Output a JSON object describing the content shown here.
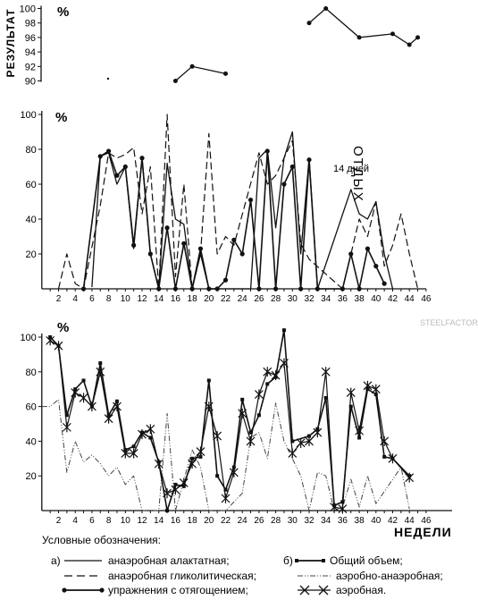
{
  "chart_data": [
    {
      "type": "line",
      "ylabel": "РЕЗУЛЬТАТ",
      "unit": "%",
      "ylim": [
        90,
        100
      ],
      "yticks": [
        90,
        92,
        94,
        96,
        98,
        100
      ],
      "series": [
        {
          "values": [
            [
              16,
              90
            ],
            [
              18,
              92
            ],
            [
              22,
              91
            ]
          ]
        },
        {
          "values": [
            [
              32,
              98
            ],
            [
              34,
              100
            ],
            [
              38,
              96
            ],
            [
              42,
              96.5
            ],
            [
              44,
              95
            ],
            [
              45,
              96
            ]
          ]
        }
      ]
    },
    {
      "type": "line",
      "unit": "%",
      "annotations": [
        "ОТДЫХ",
        "14 дней"
      ],
      "ylim": [
        0,
        100
      ],
      "yticks": [
        20,
        40,
        60,
        80,
        100
      ],
      "xlim": [
        0,
        46
      ],
      "xticks": [
        2,
        4,
        6,
        8,
        10,
        12,
        14,
        16,
        18,
        20,
        22,
        24,
        26,
        28,
        30,
        32,
        34,
        36,
        38,
        40,
        42,
        44,
        46
      ],
      "series": [
        {
          "values": [
            [
              6,
              1
            ],
            [
              7,
              76
            ],
            [
              8,
              78
            ],
            [
              9,
              60
            ],
            [
              10,
              70
            ],
            [
              11,
              23
            ],
            [
              12,
              75
            ],
            [
              13,
              20
            ],
            [
              14,
              0
            ],
            [
              15,
              72
            ],
            [
              16,
              40
            ],
            [
              17,
              37
            ],
            [
              18,
              0
            ],
            [
              19,
              20
            ],
            [
              20,
              0
            ],
            [
              25,
              0
            ],
            [
              26,
              75
            ],
            [
              27,
              80
            ],
            [
              28,
              35
            ],
            [
              29,
              75
            ],
            [
              30,
              90
            ],
            [
              31,
              20
            ],
            [
              32,
              75
            ],
            [
              33,
              0
            ],
            [
              37,
              57
            ],
            [
              38,
              43
            ],
            [
              39,
              40
            ],
            [
              40,
              50
            ],
            [
              41,
              20
            ],
            [
              42,
              0
            ]
          ]
        },
        {
          "values": [
            [
              2,
              0
            ],
            [
              3,
              20
            ],
            [
              4,
              3
            ],
            [
              5,
              0
            ],
            [
              7,
              48
            ],
            [
              8,
              78
            ],
            [
              9,
              75
            ],
            [
              10,
              77
            ],
            [
              11,
              81
            ],
            [
              12,
              43
            ],
            [
              13,
              70
            ],
            [
              14,
              0
            ],
            [
              15,
              100
            ],
            [
              16,
              7
            ],
            [
              17,
              60
            ],
            [
              18,
              0
            ],
            [
              19,
              20
            ],
            [
              20,
              89
            ],
            [
              21,
              20
            ],
            [
              22,
              30
            ],
            [
              23,
              25
            ],
            [
              26,
              78
            ],
            [
              27,
              60
            ],
            [
              28,
              65
            ],
            [
              29,
              75
            ],
            [
              30,
              85
            ],
            [
              31,
              26
            ],
            [
              32,
              17
            ],
            [
              36,
              0
            ],
            [
              37,
              20
            ],
            [
              38,
              40
            ],
            [
              39,
              30
            ],
            [
              40,
              50
            ],
            [
              41,
              13
            ],
            [
              42,
              25
            ],
            [
              43,
              43
            ],
            [
              44,
              20
            ],
            [
              45,
              0
            ]
          ]
        },
        {
          "values": [
            [
              5,
              0
            ],
            [
              7,
              76
            ],
            [
              8,
              79
            ],
            [
              9,
              65
            ],
            [
              10,
              70
            ],
            [
              11,
              25
            ],
            [
              12,
              75
            ],
            [
              13,
              20
            ],
            [
              14,
              0
            ],
            [
              15,
              35
            ],
            [
              16,
              0
            ],
            [
              17,
              26
            ],
            [
              18,
              0
            ],
            [
              19,
              23
            ],
            [
              20,
              0
            ],
            [
              21,
              0
            ],
            [
              22,
              5
            ],
            [
              23,
              28
            ],
            [
              24,
              20
            ],
            [
              25,
              51
            ],
            [
              26,
              0
            ],
            [
              27,
              79
            ],
            [
              28,
              0
            ],
            [
              29,
              60
            ],
            [
              30,
              70
            ],
            [
              31,
              0
            ],
            [
              32,
              74
            ],
            [
              33,
              0
            ],
            [
              36,
              0
            ],
            [
              37,
              20
            ],
            [
              38,
              0
            ],
            [
              39,
              23
            ],
            [
              40,
              13
            ],
            [
              41,
              3
            ]
          ]
        }
      ]
    },
    {
      "type": "line",
      "unit": "%",
      "xlabel": "НЕДЕЛИ",
      "ylim": [
        0,
        100
      ],
      "yticks": [
        20,
        40,
        60,
        80,
        100
      ],
      "xlim": [
        0,
        46
      ],
      "xticks": [
        2,
        4,
        6,
        8,
        10,
        12,
        14,
        16,
        18,
        20,
        22,
        24,
        26,
        28,
        30,
        32,
        34,
        36,
        38,
        40,
        42,
        44,
        46
      ],
      "series": [
        {
          "values": [
            [
              1,
              100
            ],
            [
              2,
              95
            ],
            [
              3,
              55
            ],
            [
              4,
              70
            ],
            [
              5,
              75
            ],
            [
              6,
              60
            ],
            [
              7,
              85
            ],
            [
              8,
              55
            ],
            [
              9,
              63
            ],
            [
              10,
              35
            ],
            [
              11,
              37
            ],
            [
              12,
              45
            ],
            [
              13,
              42
            ],
            [
              14,
              28
            ],
            [
              15,
              0
            ],
            [
              16,
              15
            ],
            [
              17,
              14
            ],
            [
              18,
              30
            ],
            [
              19,
              31
            ],
            [
              20,
              75
            ],
            [
              21,
              20
            ],
            [
              22,
              12
            ],
            [
              23,
              25
            ],
            [
              24,
              64
            ],
            [
              25,
              45
            ],
            [
              26,
              55
            ],
            [
              27,
              73
            ],
            [
              28,
              77
            ],
            [
              29,
              104
            ],
            [
              30,
              40
            ],
            [
              32,
              43
            ],
            [
              33,
              47
            ],
            [
              34,
              65
            ],
            [
              35,
              3
            ],
            [
              36,
              5
            ],
            [
              37,
              60
            ],
            [
              38,
              42
            ],
            [
              39,
              70
            ],
            [
              40,
              67
            ],
            [
              41,
              31
            ],
            [
              42,
              30
            ],
            [
              44,
              20
            ]
          ]
        },
        {
          "values": [
            [
              1,
              98
            ],
            [
              2,
              95
            ],
            [
              3,
              48
            ],
            [
              4,
              68
            ],
            [
              5,
              65
            ],
            [
              6,
              60
            ],
            [
              7,
              80
            ],
            [
              8,
              53
            ],
            [
              9,
              60
            ],
            [
              10,
              33
            ],
            [
              11,
              33
            ],
            [
              12,
              44
            ],
            [
              13,
              47
            ],
            [
              14,
              27
            ],
            [
              15,
              10
            ],
            [
              16,
              12
            ],
            [
              17,
              16
            ],
            [
              18,
              27
            ],
            [
              19,
              34
            ],
            [
              20,
              60
            ],
            [
              21,
              43
            ],
            [
              22,
              7
            ],
            [
              23,
              22
            ],
            [
              24,
              56
            ],
            [
              25,
              40
            ],
            [
              26,
              67
            ],
            [
              27,
              80
            ],
            [
              28,
              78
            ],
            [
              29,
              85
            ],
            [
              30,
              33
            ],
            [
              31,
              39
            ],
            [
              32,
              40
            ],
            [
              33,
              45
            ],
            [
              34,
              80
            ],
            [
              35,
              2
            ],
            [
              36,
              1
            ],
            [
              37,
              68
            ],
            [
              38,
              46
            ],
            [
              39,
              72
            ],
            [
              40,
              70
            ],
            [
              41,
              40
            ],
            [
              42,
              30
            ],
            [
              44,
              19
            ]
          ]
        },
        {
          "values": [
            [
              0,
              60
            ],
            [
              1,
              60
            ],
            [
              2,
              64
            ],
            [
              3,
              22
            ],
            [
              4,
              40
            ],
            [
              5,
              28
            ],
            [
              6,
              32
            ],
            [
              7,
              27
            ],
            [
              8,
              20
            ],
            [
              9,
              25
            ],
            [
              10,
              15
            ],
            [
              11,
              20
            ],
            [
              12,
              0
            ],
            [
              14,
              0
            ],
            [
              15,
              56
            ],
            [
              16,
              0
            ],
            [
              18,
              35
            ],
            [
              19,
              25
            ],
            [
              20,
              0
            ],
            [
              22,
              0
            ],
            [
              24,
              10
            ],
            [
              25,
              42
            ],
            [
              26,
              45
            ],
            [
              27,
              30
            ],
            [
              28,
              62
            ],
            [
              29,
              40
            ],
            [
              31,
              20
            ],
            [
              32,
              0
            ],
            [
              33,
              22
            ],
            [
              34,
              20
            ],
            [
              35,
              0
            ],
            [
              36,
              2
            ],
            [
              37,
              18
            ],
            [
              38,
              2
            ],
            [
              39,
              20
            ],
            [
              40,
              4
            ],
            [
              43,
              25
            ],
            [
              44,
              1
            ]
          ]
        }
      ]
    }
  ],
  "legend": {
    "title": "Условные обозначения:",
    "col1_marker": "а)",
    "col2_marker": "б)",
    "items": [
      "анаэробная алактатная;",
      "анаэробная гликолитическая;",
      "упражнения с отягощением;",
      "Общий объем;",
      "аэробно-анаэробная;",
      "аэробная."
    ]
  },
  "watermark": "STEELFACTOR.RU"
}
